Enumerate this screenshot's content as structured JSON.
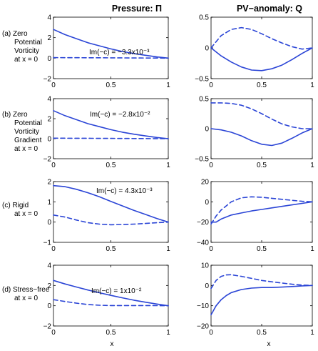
{
  "column_titles": [
    "Pressure: Π",
    "PV−anomaly: Q"
  ],
  "x_axis_label": "x",
  "rows": [
    {
      "label": [
        "(a)  Zero",
        "Potential",
        "Vorticity",
        "at x = 0"
      ],
      "annotation": "Im(−c) = −3.3x10⁻³"
    },
    {
      "label": [
        "(b)  Zero",
        "Potential",
        "Vorticity",
        "Gradient",
        "at x = 0"
      ],
      "annotation": "Im(−c) = −2.8x10⁻²"
    },
    {
      "label": [
        "(c)  Rigid",
        "at x = 0"
      ],
      "annotation": "Im(−c) = 4.3x10⁻³"
    },
    {
      "label": [
        "(d)  Stress−free",
        "at x = 0"
      ],
      "annotation": "Im(−c) = 1x10⁻²"
    }
  ],
  "colors": {
    "line": "#2b45d6",
    "axis": "#000000"
  },
  "chart_data": [
    {
      "type": "line",
      "row": "a",
      "column": "pressure",
      "xlim": [
        0,
        1
      ],
      "ylim": [
        -2,
        4
      ],
      "xticks": [
        "0",
        "0.5",
        "1"
      ],
      "yticks": [
        "−2",
        "0",
        "2",
        "4"
      ],
      "series": [
        {
          "style": "solid",
          "x": [
            0,
            0.1,
            0.2,
            0.3,
            0.4,
            0.5,
            0.6,
            0.7,
            0.8,
            0.9,
            1.0
          ],
          "y": [
            2.8,
            2.3,
            1.9,
            1.5,
            1.2,
            0.9,
            0.65,
            0.45,
            0.28,
            0.12,
            0.0
          ]
        },
        {
          "style": "dashed",
          "x": [
            0,
            0.5,
            1.0
          ],
          "y": [
            0.05,
            0.03,
            0.0
          ]
        }
      ]
    },
    {
      "type": "line",
      "row": "a",
      "column": "pv",
      "xlim": [
        0,
        1
      ],
      "ylim": [
        -0.5,
        0.5
      ],
      "xticks": [
        "0",
        "0.5",
        "1"
      ],
      "yticks": [
        "−0.5",
        "0",
        "0.5"
      ],
      "series": [
        {
          "style": "solid",
          "x": [
            0,
            0.1,
            0.2,
            0.3,
            0.4,
            0.5,
            0.6,
            0.7,
            0.8,
            0.9,
            1.0
          ],
          "y": [
            0.0,
            -0.13,
            -0.23,
            -0.31,
            -0.36,
            -0.37,
            -0.34,
            -0.28,
            -0.19,
            -0.09,
            0.0
          ]
        },
        {
          "style": "dashed",
          "x": [
            0,
            0.1,
            0.2,
            0.3,
            0.4,
            0.5,
            0.6,
            0.7,
            0.8,
            0.9,
            1.0
          ],
          "y": [
            0.0,
            0.2,
            0.3,
            0.33,
            0.3,
            0.23,
            0.15,
            0.08,
            0.02,
            -0.02,
            0.0
          ]
        }
      ]
    },
    {
      "type": "line",
      "row": "b",
      "column": "pressure",
      "xlim": [
        0,
        1
      ],
      "ylim": [
        -2,
        4
      ],
      "xticks": [
        "0",
        "0.5",
        "1"
      ],
      "yticks": [
        "−2",
        "0",
        "2",
        "4"
      ],
      "series": [
        {
          "style": "solid",
          "x": [
            0,
            0.1,
            0.2,
            0.3,
            0.4,
            0.5,
            0.6,
            0.7,
            0.8,
            0.9,
            1.0
          ],
          "y": [
            2.8,
            2.3,
            1.9,
            1.5,
            1.2,
            0.9,
            0.65,
            0.45,
            0.28,
            0.12,
            0.0
          ]
        },
        {
          "style": "dashed",
          "x": [
            0,
            0.5,
            1.0
          ],
          "y": [
            0.05,
            0.03,
            0.0
          ]
        }
      ]
    },
    {
      "type": "line",
      "row": "b",
      "column": "pv",
      "xlim": [
        0,
        1
      ],
      "ylim": [
        -0.5,
        0.5
      ],
      "xticks": [
        "0",
        "0.5",
        "1"
      ],
      "yticks": [
        "−0.5",
        "0",
        "0.5"
      ],
      "series": [
        {
          "style": "solid",
          "x": [
            0,
            0.1,
            0.2,
            0.3,
            0.4,
            0.5,
            0.6,
            0.7,
            0.8,
            0.9,
            1.0
          ],
          "y": [
            0.0,
            -0.02,
            -0.06,
            -0.12,
            -0.2,
            -0.26,
            -0.28,
            -0.24,
            -0.16,
            -0.07,
            0.0
          ]
        },
        {
          "style": "dashed",
          "x": [
            0,
            0.1,
            0.2,
            0.3,
            0.4,
            0.5,
            0.6,
            0.7,
            0.8,
            0.9,
            1.0
          ],
          "y": [
            0.43,
            0.43,
            0.42,
            0.39,
            0.33,
            0.25,
            0.16,
            0.08,
            0.03,
            0.0,
            0.0
          ]
        }
      ]
    },
    {
      "type": "line",
      "row": "c",
      "column": "pressure",
      "xlim": [
        0,
        1
      ],
      "ylim": [
        -1,
        2
      ],
      "xticks": [
        "0",
        "0.5",
        "1"
      ],
      "yticks": [
        "−1",
        "0",
        "1",
        "2"
      ],
      "series": [
        {
          "style": "solid",
          "x": [
            0,
            0.1,
            0.2,
            0.3,
            0.4,
            0.5,
            0.6,
            0.7,
            0.8,
            0.9,
            1.0
          ],
          "y": [
            1.8,
            1.75,
            1.62,
            1.45,
            1.25,
            1.02,
            0.8,
            0.58,
            0.38,
            0.18,
            0.0
          ]
        },
        {
          "style": "dashed",
          "x": [
            0,
            0.1,
            0.2,
            0.3,
            0.4,
            0.5,
            0.6,
            0.7,
            0.8,
            0.9,
            1.0
          ],
          "y": [
            0.35,
            0.25,
            0.1,
            -0.03,
            -0.1,
            -0.13,
            -0.12,
            -0.1,
            -0.07,
            -0.03,
            0.0
          ]
        }
      ]
    },
    {
      "type": "line",
      "row": "c",
      "column": "pv",
      "xlim": [
        0,
        1
      ],
      "ylim": [
        -40,
        20
      ],
      "xticks": [
        "0",
        "0.5",
        "1"
      ],
      "yticks": [
        "−40",
        "−20",
        "0",
        "20"
      ],
      "series": [
        {
          "style": "solid",
          "x": [
            0,
            0.05,
            0.1,
            0.2,
            0.3,
            0.4,
            0.5,
            0.6,
            0.7,
            0.8,
            0.9,
            1.0
          ],
          "y": [
            -20,
            -20,
            -17,
            -13,
            -11,
            -9,
            -7.5,
            -6,
            -4.5,
            -3,
            -1.5,
            0
          ]
        },
        {
          "style": "dashed",
          "x": [
            0,
            0.05,
            0.1,
            0.2,
            0.3,
            0.4,
            0.5,
            0.6,
            0.7,
            0.8,
            0.9,
            1.0
          ],
          "y": [
            -22,
            -14,
            -8,
            0,
            4,
            5,
            4.5,
            3.5,
            2.5,
            1.5,
            0.5,
            0
          ]
        }
      ]
    },
    {
      "type": "line",
      "row": "d",
      "column": "pressure",
      "xlim": [
        0,
        1
      ],
      "ylim": [
        -2,
        4
      ],
      "xticks": [
        "0",
        "0.5",
        "1"
      ],
      "yticks": [
        "−2",
        "0",
        "2",
        "4"
      ],
      "series": [
        {
          "style": "solid",
          "x": [
            0,
            0.1,
            0.2,
            0.3,
            0.4,
            0.5,
            0.6,
            0.7,
            0.8,
            0.9,
            1.0
          ],
          "y": [
            2.5,
            2.15,
            1.85,
            1.55,
            1.28,
            1.02,
            0.78,
            0.55,
            0.35,
            0.17,
            0.0
          ]
        },
        {
          "style": "dashed",
          "x": [
            0,
            0.1,
            0.2,
            0.3,
            0.4,
            0.5,
            0.6,
            0.7,
            0.8,
            0.9,
            1.0
          ],
          "y": [
            0.6,
            0.42,
            0.25,
            0.12,
            0.05,
            0.02,
            0.02,
            0.02,
            0.02,
            0.01,
            0.0
          ]
        }
      ]
    },
    {
      "type": "line",
      "row": "d",
      "column": "pv",
      "xlim": [
        0,
        1
      ],
      "ylim": [
        -20,
        10
      ],
      "xticks": [
        "0",
        "0.5",
        "1"
      ],
      "yticks": [
        "−20",
        "−10",
        "0",
        "10"
      ],
      "series": [
        {
          "style": "solid",
          "x": [
            0,
            0.05,
            0.1,
            0.15,
            0.2,
            0.3,
            0.4,
            0.5,
            0.6,
            0.7,
            0.8,
            0.9,
            1.0
          ],
          "y": [
            -14.5,
            -10,
            -7,
            -5,
            -3.5,
            -2,
            -1.3,
            -1,
            -1,
            -0.8,
            -0.5,
            -0.2,
            0
          ]
        },
        {
          "style": "dashed",
          "x": [
            0,
            0.05,
            0.1,
            0.15,
            0.2,
            0.3,
            0.4,
            0.5,
            0.6,
            0.7,
            0.8,
            0.9,
            1.0
          ],
          "y": [
            -1.5,
            2.5,
            4.5,
            5.2,
            5.3,
            4.5,
            3.5,
            2.5,
            1.8,
            1.2,
            0.6,
            0.2,
            0
          ]
        }
      ]
    }
  ]
}
